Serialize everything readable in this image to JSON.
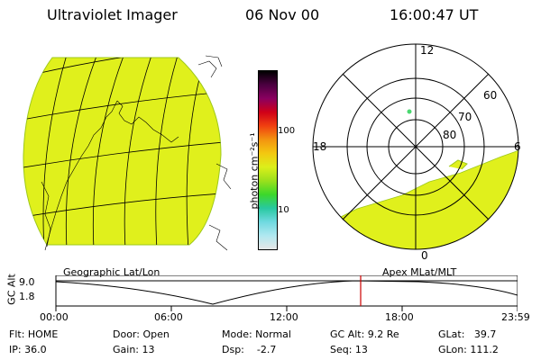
{
  "header": {
    "title": "Ultraviolet Imager",
    "date": "06 Nov 00",
    "time": "16:00:47 UT"
  },
  "colorbar": {
    "unit_label": "photon cm⁻²s⁻¹",
    "ticks": [
      "100",
      "10"
    ],
    "colors": [
      "#000000",
      "#4b0040",
      "#8a0060",
      "#d00018",
      "#f04010",
      "#f39410",
      "#f3c810",
      "#dcef1a",
      "#9be01c",
      "#3cd82a",
      "#28c8a0",
      "#6fd9e0",
      "#b0e8f0",
      "#e6e6e6"
    ]
  },
  "polar_plot": {
    "mlt_labels": [
      "12",
      "18",
      "6",
      "0"
    ],
    "mlat_labels": [
      "60",
      "70",
      "80"
    ]
  },
  "panel_labels": {
    "left": "Geographic Lat/Lon",
    "right": "Apex MLat/MLT"
  },
  "timeline": {
    "axis_label": "GC Alt",
    "y_ticks": [
      "9.0",
      "1.8"
    ],
    "x_ticks": [
      "00:00",
      "06:00",
      "12:00",
      "18:00",
      "23:59"
    ]
  },
  "status": {
    "flt": "Flt: HOME",
    "ip": "IP: 36.0",
    "door": "Door: Open",
    "gain": "Gain: 13",
    "mode": "Mode: Normal",
    "dsp": "Dsp:    -2.7",
    "gc_alt": "GC Alt: 9.2 Re",
    "seq": "Seq: 13",
    "glat": "GLat:   39.7",
    "glon": "GLon: 111.2"
  },
  "colors": {
    "fill": "#e0f01c",
    "current_time_marker": "#cc0000",
    "accent_dot": "#4ad870"
  }
}
